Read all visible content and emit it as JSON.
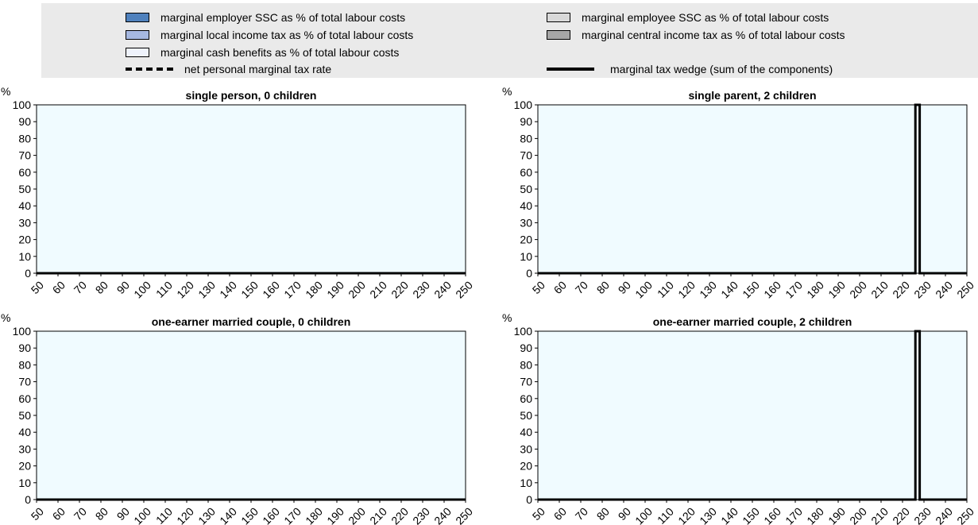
{
  "legend": {
    "items": [
      {
        "label": "marginal employer SSC as % of total labour costs",
        "kind": "box",
        "color": "#4f81bd"
      },
      {
        "label": "marginal employee SSC as % of total labour costs",
        "kind": "box",
        "color": "#d9d9d9"
      },
      {
        "label": "marginal local income tax as % of total labour costs",
        "kind": "box",
        "color": "#a6b8e0"
      },
      {
        "label": "marginal central income tax as % of total labour costs",
        "kind": "box",
        "color": "#a6a6a6"
      },
      {
        "label": "marginal cash benefits as % of total labour costs",
        "kind": "box",
        "color": "#eef2fb"
      },
      {
        "label": "net personal marginal tax rate",
        "kind": "dashed",
        "color": "#000000"
      },
      {
        "label": "marginal tax wedge (sum of the components)",
        "kind": "solid",
        "color": "#000000"
      }
    ]
  },
  "chart_data": [
    {
      "type": "area",
      "title": "single person, 0 children",
      "ylabel": "%",
      "ylim": [
        0,
        100
      ],
      "yticks": [
        "0",
        "10",
        "20",
        "30",
        "40",
        "50",
        "60",
        "70",
        "80",
        "90",
        "100"
      ],
      "xlim": [
        50,
        250
      ],
      "xticks": [
        "50",
        "60",
        "70",
        "80",
        "90",
        "100",
        "110",
        "120",
        "130",
        "140",
        "150",
        "160",
        "170",
        "180",
        "190",
        "200",
        "210",
        "220",
        "230",
        "240",
        "250"
      ],
      "series": [
        {
          "name": "marginal tax wedge (sum of the components)",
          "style": "solid",
          "x": [
            50,
            250
          ],
          "y": [
            0,
            0
          ]
        },
        {
          "name": "net personal marginal tax rate",
          "style": "dashed",
          "x": [
            50,
            250
          ],
          "y": [
            0,
            0
          ]
        }
      ]
    },
    {
      "type": "area",
      "title": "single parent, 2 children",
      "ylabel": "%",
      "ylim": [
        0,
        100
      ],
      "yticks": [
        "0",
        "10",
        "20",
        "30",
        "40",
        "50",
        "60",
        "70",
        "80",
        "90",
        "100"
      ],
      "xlim": [
        50,
        250
      ],
      "xticks": [
        "50",
        "60",
        "70",
        "80",
        "90",
        "100",
        "110",
        "120",
        "130",
        "140",
        "150",
        "160",
        "170",
        "180",
        "190",
        "200",
        "210",
        "220",
        "230",
        "240",
        "250"
      ],
      "series": [
        {
          "name": "marginal tax wedge (sum of the components)",
          "style": "solid",
          "x": [
            50,
            226,
            226,
            228,
            228,
            250
          ],
          "y": [
            0,
            0,
            100,
            100,
            0,
            0
          ]
        },
        {
          "name": "net personal marginal tax rate",
          "style": "dashed",
          "x": [
            50,
            226,
            226,
            228,
            228,
            250
          ],
          "y": [
            0,
            0,
            100,
            100,
            0,
            0
          ]
        }
      ]
    },
    {
      "type": "area",
      "title": "one-earner married couple, 0 children",
      "ylabel": "%",
      "ylim": [
        0,
        100
      ],
      "yticks": [
        "0",
        "10",
        "20",
        "30",
        "40",
        "50",
        "60",
        "70",
        "80",
        "90",
        "100"
      ],
      "xlim": [
        50,
        250
      ],
      "xticks": [
        "50",
        "60",
        "70",
        "80",
        "90",
        "100",
        "110",
        "120",
        "130",
        "140",
        "150",
        "160",
        "170",
        "180",
        "190",
        "200",
        "210",
        "220",
        "230",
        "240",
        "250"
      ],
      "series": [
        {
          "name": "marginal tax wedge (sum of the components)",
          "style": "solid",
          "x": [
            50,
            250
          ],
          "y": [
            0,
            0
          ]
        },
        {
          "name": "net personal marginal tax rate",
          "style": "dashed",
          "x": [
            50,
            250
          ],
          "y": [
            0,
            0
          ]
        }
      ]
    },
    {
      "type": "area",
      "title": "one-earner married couple, 2 children",
      "ylabel": "%",
      "ylim": [
        0,
        100
      ],
      "yticks": [
        "0",
        "10",
        "20",
        "30",
        "40",
        "50",
        "60",
        "70",
        "80",
        "90",
        "100"
      ],
      "xlim": [
        50,
        250
      ],
      "xticks": [
        "50",
        "60",
        "70",
        "80",
        "90",
        "100",
        "110",
        "120",
        "130",
        "140",
        "150",
        "160",
        "170",
        "180",
        "190",
        "200",
        "210",
        "220",
        "230",
        "240",
        "250"
      ],
      "series": [
        {
          "name": "marginal tax wedge (sum of the components)",
          "style": "solid",
          "x": [
            50,
            226,
            226,
            228,
            228,
            250
          ],
          "y": [
            0,
            0,
            100,
            100,
            0,
            0
          ]
        },
        {
          "name": "net personal marginal tax rate",
          "style": "dashed",
          "x": [
            50,
            226,
            226,
            228,
            228,
            250
          ],
          "y": [
            0,
            0,
            100,
            100,
            0,
            0
          ]
        }
      ]
    }
  ],
  "colors": {
    "plot_bg": "#f0fbff",
    "legend_bg": "#eaeaea"
  }
}
